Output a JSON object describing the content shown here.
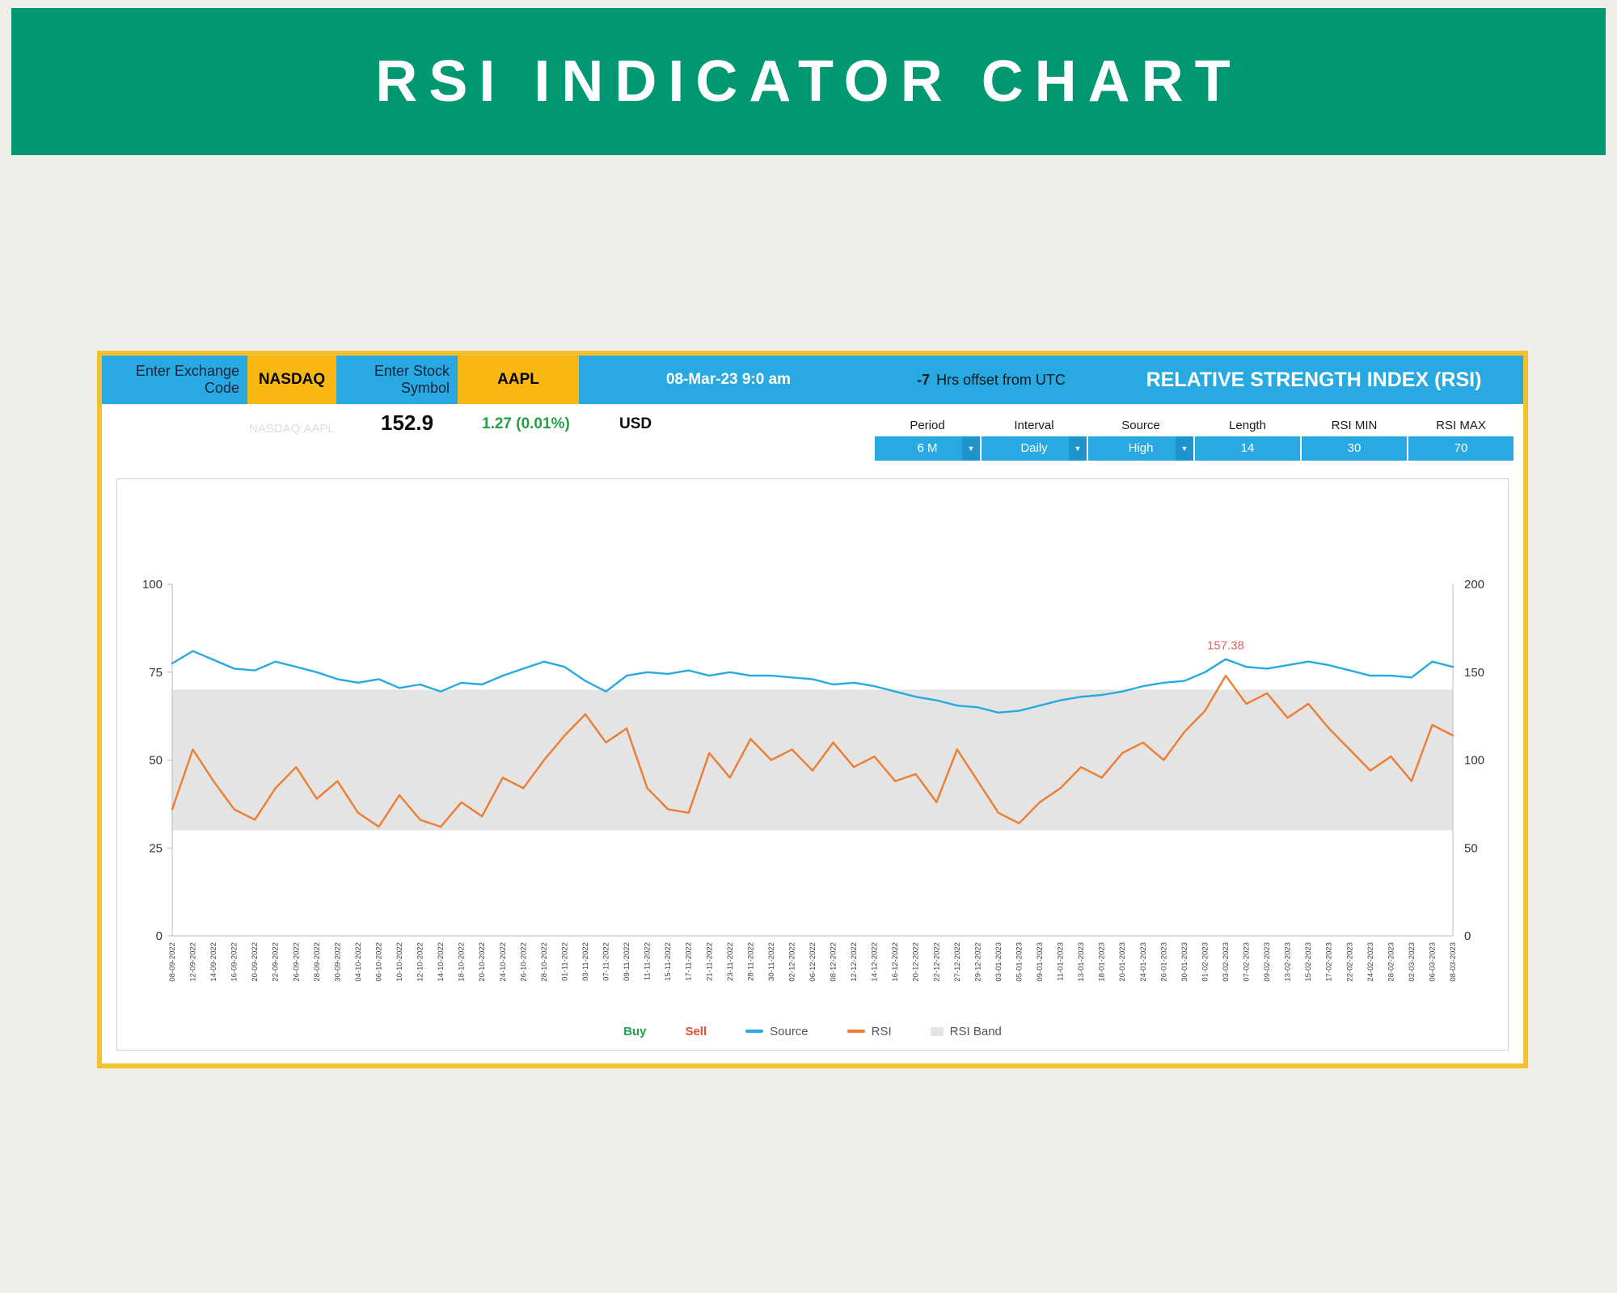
{
  "banner": {
    "title": "RSI INDICATOR CHART"
  },
  "header": {
    "exchange_label": "Enter Exchange Code",
    "exchange_value": "NASDAQ",
    "symbol_label": "Enter Stock Symbol",
    "symbol_value": "AAPL",
    "datetime": "08-Mar-23 9:0 am",
    "utc_offset_value": "-7",
    "utc_offset_label": "Hrs offset from UTC",
    "title": "RELATIVE STRENGTH INDEX (RSI)"
  },
  "quote": {
    "ticker_watermark": "NASDAQ:AAPL",
    "price": "152.9",
    "change": "1.27 (0.01%)",
    "currency": "USD"
  },
  "controls": [
    {
      "label": "Period",
      "value": "6 M",
      "dropdown": true
    },
    {
      "label": "Interval",
      "value": "Daily",
      "dropdown": true
    },
    {
      "label": "Source",
      "value": "High",
      "dropdown": true
    },
    {
      "label": "Length",
      "value": "14",
      "dropdown": false
    },
    {
      "label": "RSI MIN",
      "value": "30",
      "dropdown": false
    },
    {
      "label": "RSI MAX",
      "value": "70",
      "dropdown": false
    }
  ],
  "legend": {
    "buy": "Buy",
    "sell": "Sell",
    "source": "Source",
    "rsi": "RSI",
    "band": "RSI Band"
  },
  "colors": {
    "banner_green": "#009873",
    "accent_blue": "#29A9E1",
    "accent_yellow": "#F9B712",
    "border_gold": "#F2C12E",
    "source_blue": "#29A9E1",
    "rsi_orange": "#ED7D31",
    "band_gray": "#E4E4E4",
    "buy_green": "#21A04A",
    "sell_red": "#E8502D",
    "change_green": "#21A04A",
    "annotation_red": "#E06666",
    "axis_gray": "#B9B9B9"
  },
  "chart_data": {
    "type": "line",
    "x": [
      "08-09-2022",
      "12-09-2022",
      "14-09-2022",
      "16-09-2022",
      "20-09-2022",
      "22-09-2022",
      "26-09-2022",
      "28-09-2022",
      "30-09-2022",
      "04-10-2022",
      "06-10-2022",
      "10-10-2022",
      "12-10-2022",
      "14-10-2022",
      "18-10-2022",
      "20-10-2022",
      "24-10-2022",
      "26-10-2022",
      "28-10-2022",
      "01-11-2022",
      "03-11-2022",
      "07-11-2022",
      "09-11-2022",
      "11-11-2022",
      "15-11-2022",
      "17-11-2022",
      "21-11-2022",
      "23-11-2022",
      "28-11-2022",
      "30-11-2022",
      "02-12-2022",
      "06-12-2022",
      "08-12-2022",
      "12-12-2022",
      "14-12-2022",
      "16-12-2022",
      "20-12-2022",
      "22-12-2022",
      "27-12-2022",
      "29-12-2022",
      "03-01-2023",
      "05-01-2023",
      "09-01-2023",
      "11-01-2023",
      "13-01-2023",
      "18-01-2023",
      "20-01-2023",
      "24-01-2023",
      "26-01-2023",
      "30-01-2023",
      "01-02-2023",
      "03-02-2023",
      "07-02-2023",
      "09-02-2023",
      "13-02-2023",
      "15-02-2023",
      "17-02-2023",
      "22-02-2023",
      "24-02-2023",
      "28-02-2023",
      "02-03-2023",
      "06-03-2023",
      "08-03-2023"
    ],
    "series": [
      {
        "name": "Source",
        "axis": "right",
        "color": "#29A9E1",
        "values": [
          155,
          162,
          157,
          152,
          151,
          156,
          153,
          150,
          146,
          144,
          146,
          141,
          143,
          139,
          144,
          143,
          148,
          152,
          156,
          153,
          145,
          139,
          148,
          150,
          149,
          151,
          148,
          150,
          148,
          148,
          147,
          146,
          143,
          144,
          142,
          139,
          136,
          134,
          131,
          130,
          127,
          128,
          131,
          134,
          136,
          137,
          139,
          142,
          144,
          145,
          150,
          157.38,
          153,
          152,
          154,
          156,
          154,
          151,
          148,
          148,
          147,
          156,
          153
        ]
      },
      {
        "name": "RSI",
        "axis": "left",
        "color": "#ED7D31",
        "values": [
          36,
          53,
          44,
          36,
          33,
          42,
          48,
          39,
          44,
          35,
          31,
          40,
          33,
          31,
          38,
          34,
          45,
          42,
          50,
          57,
          63,
          55,
          59,
          42,
          36,
          35,
          52,
          45,
          56,
          50,
          53,
          47,
          55,
          48,
          51,
          44,
          46,
          38,
          53,
          44,
          35,
          32,
          38,
          42,
          48,
          45,
          52,
          55,
          50,
          58,
          64,
          74,
          66,
          69,
          62,
          66,
          59,
          53,
          47,
          51,
          44,
          60,
          57
        ]
      }
    ],
    "left_axis": {
      "range": [
        0,
        100
      ],
      "ticks": [
        0,
        25,
        50,
        75,
        100
      ]
    },
    "right_axis": {
      "range": [
        0,
        200
      ],
      "ticks": [
        0,
        50,
        100,
        150,
        200
      ]
    },
    "rsi_band": [
      30,
      70
    ],
    "annotation": {
      "text": "157.38",
      "series": "Source",
      "index": 51
    },
    "grid": false,
    "legend_position": "bottom"
  }
}
